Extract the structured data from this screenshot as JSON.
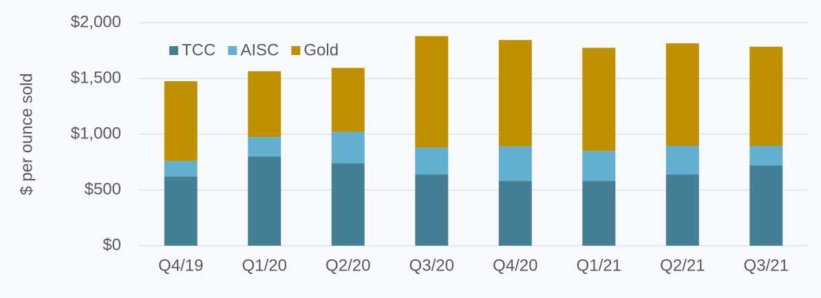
{
  "chart_data": {
    "type": "stacked_bar",
    "y_label": "$ per ounce sold",
    "categories": [
      "Q4/19",
      "Q1/20",
      "Q2/20",
      "Q3/20",
      "Q4/20",
      "Q1/21",
      "Q2/21",
      "Q3/21"
    ],
    "series": [
      {
        "name": "TCC",
        "color": "#457f95",
        "values": [
          620,
          800,
          740,
          640,
          580,
          580,
          640,
          720
        ]
      },
      {
        "name": "AISC",
        "color": "#62afcf",
        "values": [
          140,
          175,
          280,
          240,
          310,
          270,
          255,
          175
        ]
      },
      {
        "name": "Gold",
        "color": "#bf9000",
        "values": [
          715,
          590,
          575,
          1000,
          955,
          925,
          920,
          890
        ]
      }
    ],
    "ylim": [
      0,
      2000
    ],
    "yticks": [
      {
        "value": 0,
        "label": "$0"
      },
      {
        "value": 500,
        "label": "$500"
      },
      {
        "value": 1000,
        "label": "$1,000"
      },
      {
        "value": 1500,
        "label": "$1,500"
      },
      {
        "value": 2000,
        "label": "$2,000"
      }
    ],
    "grid": true,
    "legend": "top-left"
  }
}
